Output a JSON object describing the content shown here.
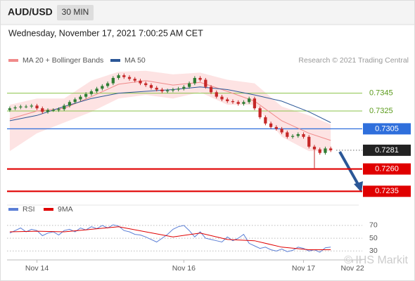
{
  "header": {
    "symbol": "AUD/USD",
    "timeframe": "30 MIN",
    "timestamp": "Wednesday, November 17, 2021 7:00:25 AM CET"
  },
  "chart_data": [
    {
      "type": "candlestick",
      "credit": "Research © 2021 Trading Central",
      "up_color": "#2e7d32",
      "down_color": "#c62828",
      "x": [
        0,
        1,
        2,
        3,
        4,
        5,
        6,
        7,
        8,
        9,
        10,
        11,
        12,
        13,
        14,
        15,
        16,
        17,
        18,
        19,
        20,
        21,
        22,
        23,
        24,
        25,
        26,
        27,
        28,
        29,
        30,
        31,
        32,
        33,
        34,
        35,
        36,
        37,
        38,
        39,
        40,
        41,
        42,
        43,
        44,
        45,
        46,
        47,
        48,
        49,
        50,
        51,
        52,
        53,
        54,
        55,
        56,
        57,
        58,
        59
      ],
      "open": [
        0.7326,
        0.7328,
        0.7329,
        0.733,
        0.733,
        0.7331,
        0.7328,
        0.7324,
        0.7326,
        0.7326,
        0.7327,
        0.7331,
        0.7335,
        0.7338,
        0.7341,
        0.7344,
        0.7347,
        0.735,
        0.7353,
        0.7356,
        0.7362,
        0.7365,
        0.7363,
        0.7361,
        0.7359,
        0.7356,
        0.7354,
        0.7351,
        0.7349,
        0.7347,
        0.7348,
        0.7349,
        0.735,
        0.7352,
        0.7356,
        0.7362,
        0.736,
        0.7352,
        0.7346,
        0.7341,
        0.7338,
        0.7336,
        0.7335,
        0.7333,
        0.7335,
        0.7339,
        0.7328,
        0.7318,
        0.7311,
        0.7307,
        0.7305,
        0.7301,
        0.7296,
        0.7297,
        0.7299,
        0.7296,
        0.7285,
        0.7282,
        0.7278,
        0.7283
      ],
      "high": [
        0.733,
        0.7331,
        0.7332,
        0.7332,
        0.7333,
        0.7333,
        0.733,
        0.7328,
        0.7328,
        0.7329,
        0.7333,
        0.7337,
        0.734,
        0.7343,
        0.7346,
        0.7349,
        0.7352,
        0.7355,
        0.7358,
        0.7364,
        0.7367,
        0.7367,
        0.7365,
        0.7363,
        0.7361,
        0.7358,
        0.7356,
        0.7353,
        0.7351,
        0.735,
        0.7351,
        0.7352,
        0.7354,
        0.7358,
        0.7364,
        0.7364,
        0.7362,
        0.7354,
        0.7348,
        0.7343,
        0.734,
        0.7338,
        0.7337,
        0.7337,
        0.7341,
        0.7341,
        0.733,
        0.732,
        0.7313,
        0.7309,
        0.7307,
        0.7303,
        0.7299,
        0.7301,
        0.7301,
        0.7298,
        0.7287,
        0.7284,
        0.7285,
        0.7285
      ],
      "low": [
        0.7324,
        0.7326,
        0.7327,
        0.7328,
        0.7328,
        0.7326,
        0.7322,
        0.7322,
        0.7324,
        0.7324,
        0.7325,
        0.7329,
        0.7333,
        0.7336,
        0.7339,
        0.7342,
        0.7345,
        0.7348,
        0.7351,
        0.7354,
        0.736,
        0.7361,
        0.7359,
        0.7357,
        0.7354,
        0.7352,
        0.7349,
        0.7347,
        0.7345,
        0.7345,
        0.7346,
        0.7347,
        0.7348,
        0.735,
        0.7354,
        0.7358,
        0.735,
        0.7344,
        0.7339,
        0.7336,
        0.7334,
        0.7333,
        0.7331,
        0.7331,
        0.7333,
        0.7326,
        0.7316,
        0.7309,
        0.7305,
        0.7303,
        0.7299,
        0.7294,
        0.7294,
        0.7295,
        0.7294,
        0.7283,
        0.7261,
        0.7276,
        0.7276,
        0.7279
      ],
      "close": [
        0.7328,
        0.7329,
        0.733,
        0.733,
        0.7331,
        0.7328,
        0.7324,
        0.7326,
        0.7326,
        0.7327,
        0.7331,
        0.7335,
        0.7338,
        0.7341,
        0.7344,
        0.7347,
        0.735,
        0.7353,
        0.7356,
        0.7362,
        0.7365,
        0.7363,
        0.7361,
        0.7359,
        0.7356,
        0.7354,
        0.7351,
        0.7349,
        0.7347,
        0.7348,
        0.7349,
        0.735,
        0.7352,
        0.7356,
        0.7362,
        0.736,
        0.7352,
        0.7346,
        0.7341,
        0.7338,
        0.7336,
        0.7335,
        0.7333,
        0.7335,
        0.7339,
        0.7328,
        0.7318,
        0.7311,
        0.7307,
        0.7305,
        0.7301,
        0.7296,
        0.7297,
        0.7299,
        0.7296,
        0.7285,
        0.7282,
        0.7278,
        0.7283,
        0.7281
      ],
      "series": [
        {
          "name": "MA 20 + Bollinger Bands",
          "color": "#f08a8a",
          "band_color": "#fde3e3",
          "x": [
            0,
            5,
            10,
            15,
            20,
            25,
            30,
            35,
            40,
            45,
            50,
            55,
            59
          ],
          "values": [
            0.7316,
            0.7325,
            0.7328,
            0.7341,
            0.7355,
            0.7359,
            0.7354,
            0.7357,
            0.7347,
            0.7336,
            0.7314,
            0.73,
            0.7292
          ],
          "upper": [
            0.7332,
            0.7339,
            0.7339,
            0.7359,
            0.7369,
            0.737,
            0.7366,
            0.7368,
            0.736,
            0.7356,
            0.733,
            0.732,
            0.731
          ],
          "lower": [
            0.728,
            0.73,
            0.7312,
            0.7324,
            0.7339,
            0.7343,
            0.7339,
            0.7346,
            0.7332,
            0.7332,
            0.7296,
            0.728,
            0.728
          ]
        },
        {
          "name": "MA 50",
          "color": "#2b5797",
          "x": [
            0,
            5,
            10,
            15,
            20,
            25,
            30,
            35,
            40,
            45,
            50,
            55,
            59
          ],
          "values": [
            0.7314,
            0.732,
            0.733,
            0.7339,
            0.7345,
            0.7347,
            0.7349,
            0.7352,
            0.7349,
            0.7343,
            0.7336,
            0.7324,
            0.7312
          ]
        }
      ],
      "levels": [
        {
          "value": 0.7345,
          "color": "#8bc34a",
          "line": "thin",
          "boxed": false
        },
        {
          "value": 0.7325,
          "color": "#8bc34a",
          "line": "thin",
          "boxed": false
        },
        {
          "value": 0.7305,
          "color": "#2f6fdc",
          "line": "solid",
          "boxed": true
        },
        {
          "value": 0.7281,
          "color": "#222222",
          "line": "dotted",
          "boxed": true
        },
        {
          "value": 0.726,
          "label": "0.7260",
          "color": "#e00000",
          "line": "thick",
          "boxed": true
        },
        {
          "value": 0.7235,
          "color": "#e00000",
          "line": "thick",
          "boxed": true
        }
      ],
      "xlim": [
        -0.5,
        63.5
      ],
      "ylim": [
        0.7225,
        0.7373
      ]
    },
    {
      "type": "line",
      "watermark": "© IHS Markit",
      "series": [
        {
          "name": "RSI",
          "color": "#5b7fd6",
          "x": [
            0,
            1,
            2,
            3,
            4,
            5,
            6,
            7,
            8,
            9,
            10,
            11,
            12,
            13,
            14,
            15,
            16,
            17,
            18,
            19,
            20,
            21,
            22,
            23,
            24,
            25,
            26,
            27,
            28,
            29,
            30,
            31,
            32,
            33,
            34,
            35,
            36,
            37,
            38,
            39,
            40,
            41,
            42,
            43,
            44,
            45,
            46,
            47,
            48,
            49,
            50,
            51,
            52,
            53,
            54,
            55,
            56,
            57,
            58,
            59
          ],
          "values": [
            58,
            62,
            66,
            60,
            64,
            62,
            54,
            58,
            60,
            55,
            62,
            64,
            60,
            66,
            63,
            68,
            65,
            70,
            66,
            71,
            69,
            62,
            60,
            56,
            55,
            52,
            48,
            44,
            50,
            56,
            64,
            68,
            70,
            62,
            52,
            60,
            50,
            48,
            46,
            44,
            52,
            46,
            50,
            56,
            42,
            38,
            34,
            36,
            32,
            30,
            33,
            29,
            31,
            36,
            34,
            30,
            32,
            28,
            35,
            36
          ]
        },
        {
          "name": "9MA",
          "color": "#e00000",
          "x": [
            0,
            5,
            10,
            15,
            20,
            25,
            30,
            35,
            40,
            45,
            50,
            55,
            59
          ],
          "values": [
            60,
            61,
            60,
            64,
            68,
            60,
            52,
            58,
            48,
            46,
            36,
            32,
            32
          ]
        }
      ],
      "xlim": [
        -0.5,
        63.5
      ],
      "ylim": [
        16,
        93
      ],
      "yticks": [
        30,
        50,
        70
      ],
      "xticks": [
        {
          "value": 5,
          "label": "Nov 14"
        },
        {
          "value": 32,
          "label": "Nov 16"
        },
        {
          "value": 54,
          "label": "Nov 17"
        },
        {
          "value": 63,
          "label": "Nov 22"
        }
      ]
    }
  ]
}
